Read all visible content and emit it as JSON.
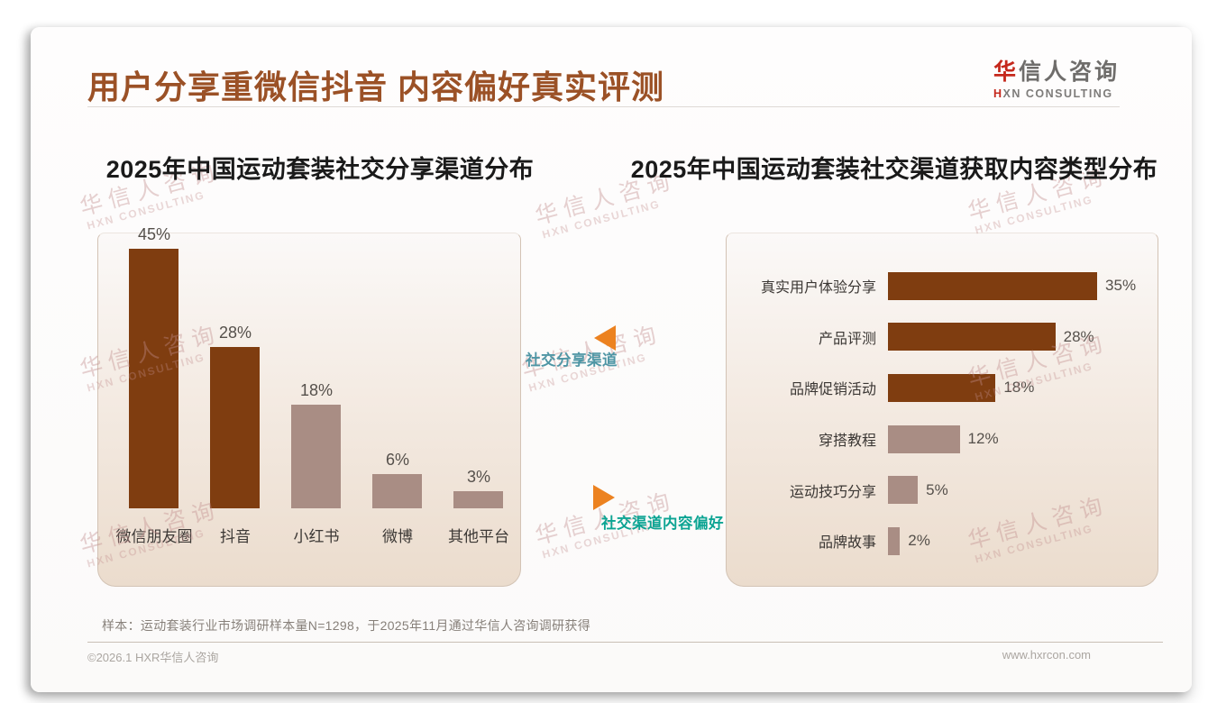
{
  "header": {
    "title": "用户分享重微信抖音 内容偏好真实评测",
    "logo": {
      "cn_accent": "华",
      "cn_rest": "信人咨询",
      "en_accent": "H",
      "en_rest": "XN CONSULTING"
    }
  },
  "watermark": {
    "line1": "华信人咨询",
    "line2": "HXN CONSULTING"
  },
  "annotations": [
    {
      "label": "社交分享渠道",
      "color": "#4f96a5",
      "direction": "left"
    },
    {
      "label": "社交渠道内容偏好",
      "color": "#0ca493",
      "direction": "right"
    }
  ],
  "theme": {
    "title_brown": "#9b5126",
    "bar_dark": "#7f3d10",
    "bar_muted": "#a98d84",
    "arrow_orange": "#ec8220",
    "logo_red": "#c5281c"
  },
  "chart_data": [
    {
      "type": "bar",
      "title": "2025年中国运动套装社交分享渠道分布",
      "categories": [
        "微信朋友圈",
        "抖音",
        "小红书",
        "微博",
        "其他平台"
      ],
      "values": [
        45,
        28,
        18,
        6,
        3
      ],
      "value_labels": [
        "45%",
        "28%",
        "18%",
        "6%",
        "3%"
      ],
      "bar_colors": [
        "#7f3d10",
        "#7f3d10",
        "#a98d84",
        "#a98d84",
        "#a98d84"
      ],
      "xlabel": "",
      "ylabel": "",
      "ylim": [
        0,
        48
      ],
      "grid": false,
      "legend": false
    },
    {
      "type": "bar-horizontal",
      "title": "2025年中国运动套装社交渠道获取内容类型分布",
      "categories": [
        "真实用户体验分享",
        "产品评测",
        "品牌促销活动",
        "穿搭教程",
        "运动技巧分享",
        "品牌故事"
      ],
      "values": [
        35,
        28,
        18,
        12,
        5,
        2
      ],
      "value_labels": [
        "35%",
        "28%",
        "18%",
        "12%",
        "5%",
        "2%"
      ],
      "bar_colors": [
        "#7f3d10",
        "#7f3d10",
        "#7f3d10",
        "#a98d84",
        "#a98d84",
        "#a98d84"
      ],
      "xlabel": "",
      "ylabel": "",
      "xlim": [
        0,
        38
      ],
      "grid": false,
      "legend": false
    }
  ],
  "footer": {
    "sample_note": "样本：运动套装行业市场调研样本量N=1298，于2025年11月通过华信人咨询调研获得",
    "copyright": "©2026.1 HXR华信人咨询",
    "website": "www.hxrcon.com"
  }
}
